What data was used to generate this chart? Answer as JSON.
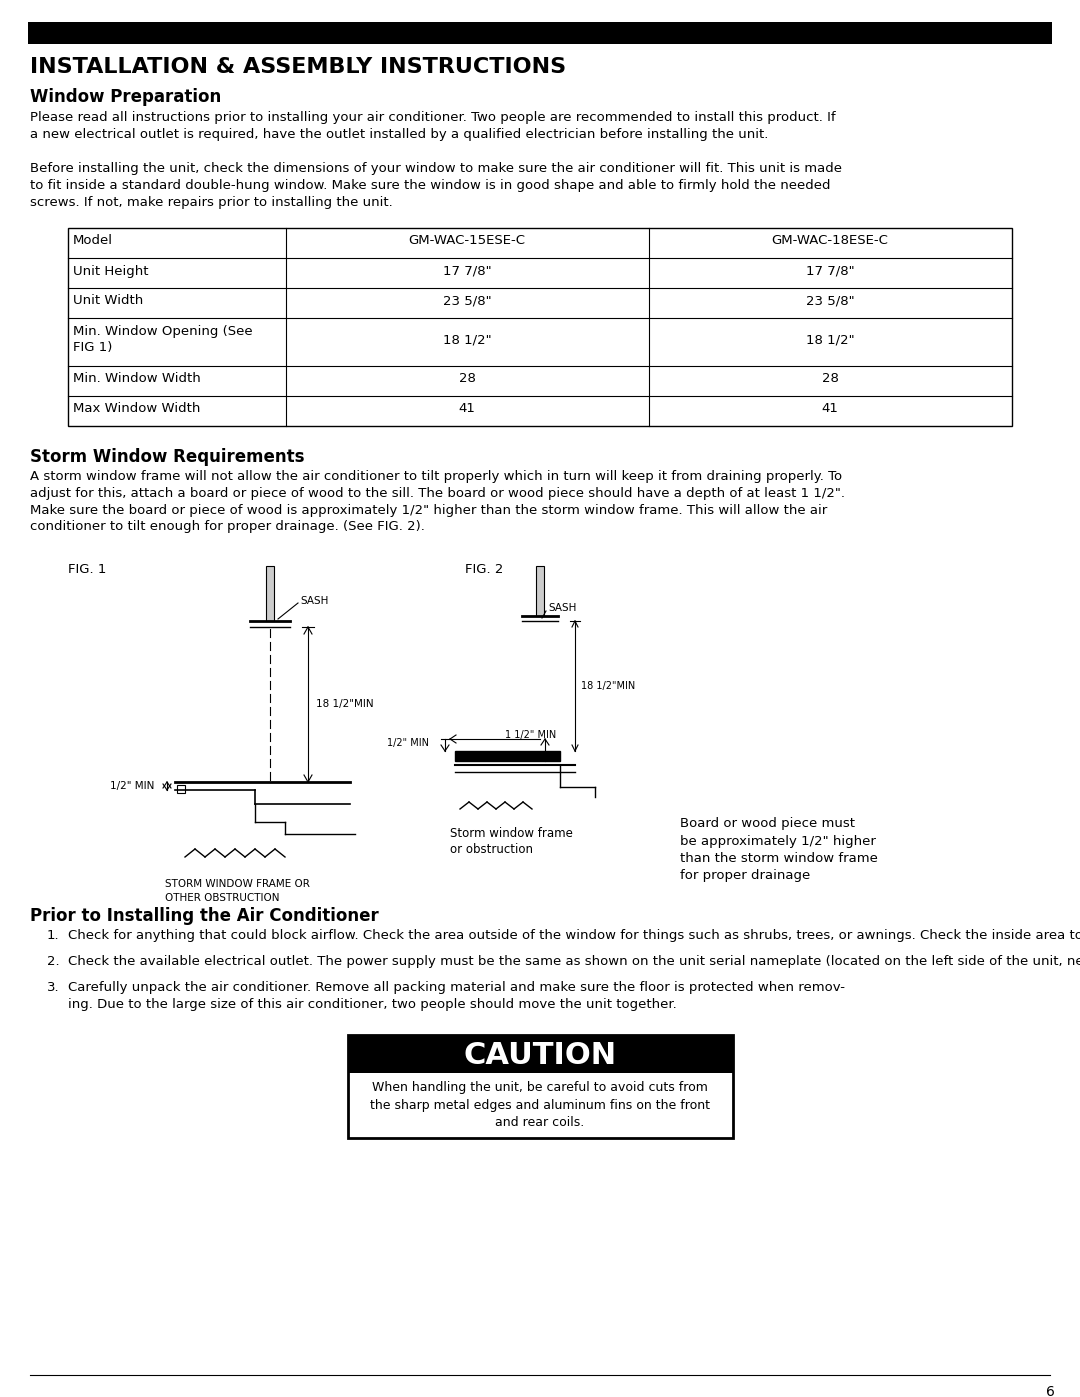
{
  "page_title": "INSTALLATION & ASSEMBLY INSTRUCTIONS",
  "section1_title": "Window Preparation",
  "section1_para1": "Please read all instructions prior to installing your air conditioner. Two people are recommended to install this product. If\na new electrical outlet is required, have the outlet installed by a qualified electrician before installing the unit.",
  "section1_para2": "Before installing the unit, check the dimensions of your window to make sure the air conditioner will fit. This unit is made\nto fit inside a standard double-hung window. Make sure the window is in good shape and able to firmly hold the needed\nscrews. If not, make repairs prior to installing the unit.",
  "table_headers": [
    "Model",
    "GM-WAC-15ESE-C",
    "GM-WAC-18ESE-C"
  ],
  "table_rows": [
    [
      "Unit Height",
      "17 7/8\"",
      "17 7/8\""
    ],
    [
      "Unit Width",
      "23 5/8\"",
      "23 5/8\""
    ],
    [
      "Min. Window Opening (See\nFIG 1)",
      "18 1/2\"",
      "18 1/2\""
    ],
    [
      "Min. Window Width",
      "28",
      "28"
    ],
    [
      "Max Window Width",
      "41",
      "41"
    ]
  ],
  "section2_title": "Storm Window Requirements",
  "section2_para": "A storm window frame will not allow the air conditioner to tilt properly which in turn will keep it from draining properly. To\nadjust for this, attach a board or piece of wood to the sill. The board or wood piece should have a depth of at least 1 1/2\".\nMake sure the board or piece of wood is approximately 1/2\" higher than the storm window frame. This will allow the air\nconditioner to tilt enough for proper drainage. (See FIG. 2).",
  "section3_title": "Prior to Installing the Air Conditioner",
  "section3_item1": "Check for anything that could block airflow. Check the area outside of the window for things such as shrubs, trees, or awnings. Check the inside area to make sure curtains, drapes, or blinds will not prevent proper airflow.",
  "section3_item2": "Check the available electrical outlet. The power supply must be the same as shown on the unit serial nameplate (located on the left side of the unit, near the front faceplate). Be sure the outlet is close enough for the power cord to reach.",
  "section3_item3": "Carefully unpack the air conditioner. Remove all packing material and make sure the floor is protected when remov-\ning. Due to the large size of this air conditioner, two people should move the unit together.",
  "caution_title": "CAUTION",
  "caution_text": "When handling the unit, be careful to avoid cuts from\nthe sharp metal edges and aluminum fins on the front\nand rear coils.",
  "page_number": "6",
  "fig1_label": "FIG. 1",
  "fig2_label": "FIG. 2",
  "fig1_caption1": "STORM WINDOW FRAME OR",
  "fig1_caption2": "OTHER OBSTRUCTION",
  "fig2_caption1": "Storm window frame",
  "fig2_caption2": "or obstruction",
  "fig3_caption": "Board or wood piece must\nbe approximately 1/2\" higher\nthan the storm window frame\nfor proper drainage"
}
